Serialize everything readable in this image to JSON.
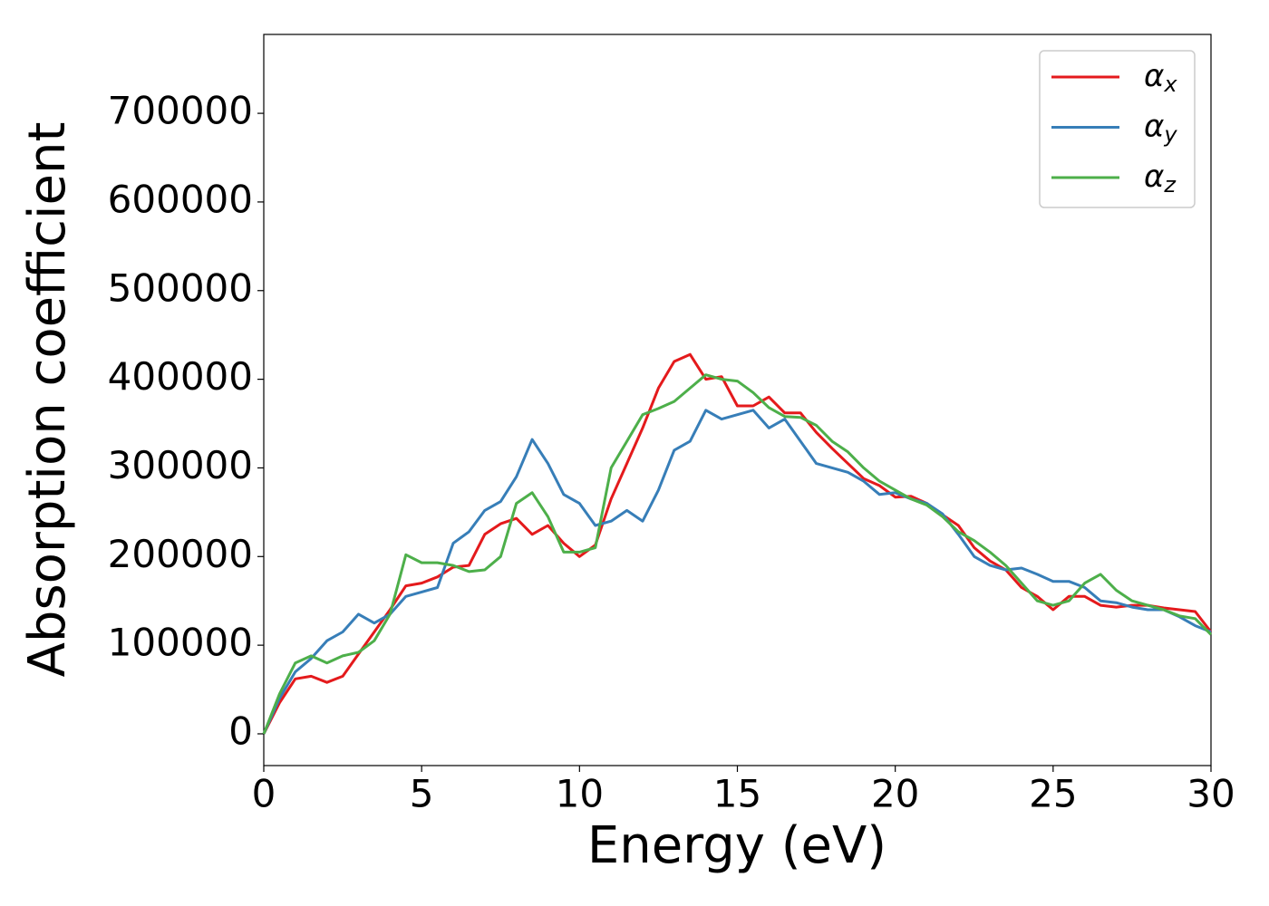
{
  "chart_data": {
    "type": "line",
    "xlabel": "Energy (eV)",
    "ylabel": "Absorption coefficient",
    "x": [
      0,
      0.5,
      1,
      1.5,
      2,
      2.5,
      3,
      3.5,
      4,
      4.5,
      5,
      5.5,
      6,
      6.5,
      7,
      7.5,
      8,
      8.5,
      9,
      9.5,
      10,
      10.5,
      11,
      11.5,
      12,
      12.5,
      13,
      13.5,
      14,
      14.5,
      15,
      15.5,
      16,
      16.5,
      17,
      17.5,
      18,
      18.5,
      19,
      19.5,
      20,
      20.5,
      21,
      21.5,
      22,
      22.5,
      23,
      23.5,
      24,
      24.5,
      25,
      25.5,
      26,
      26.5,
      27,
      27.5,
      28,
      28.5,
      29,
      29.5,
      30
    ],
    "series": [
      {
        "name": "αx",
        "color": "#e41a1c",
        "values": [
          0,
          35000,
          62000,
          65000,
          58000,
          65000,
          90000,
          115000,
          140000,
          167000,
          170000,
          177000,
          188000,
          190000,
          225000,
          237000,
          243000,
          225000,
          235000,
          215000,
          200000,
          213000,
          265000,
          305000,
          345000,
          390000,
          420000,
          428000,
          400000,
          403000,
          370000,
          370000,
          380000,
          362000,
          362000,
          340000,
          322000,
          305000,
          288000,
          280000,
          267000,
          268000,
          260000,
          247000,
          235000,
          210000,
          195000,
          185000,
          165000,
          155000,
          140000,
          155000,
          155000,
          145000,
          143000,
          145000,
          145000,
          142000,
          140000,
          138000,
          115000
        ]
      },
      {
        "name": "αy",
        "color": "#377eb8",
        "values": [
          0,
          40000,
          70000,
          85000,
          105000,
          115000,
          135000,
          125000,
          135000,
          155000,
          160000,
          165000,
          215000,
          228000,
          252000,
          262000,
          290000,
          332000,
          305000,
          270000,
          260000,
          235000,
          240000,
          252000,
          240000,
          275000,
          320000,
          330000,
          365000,
          355000,
          360000,
          365000,
          345000,
          355000,
          330000,
          305000,
          300000,
          295000,
          285000,
          270000,
          272000,
          265000,
          260000,
          248000,
          225000,
          200000,
          190000,
          185000,
          187000,
          180000,
          172000,
          172000,
          165000,
          150000,
          148000,
          143000,
          140000,
          140000,
          132000,
          122000,
          115000
        ]
      },
      {
        "name": "αz",
        "color": "#4daf4a",
        "values": [
          0,
          45000,
          80000,
          88000,
          80000,
          88000,
          92000,
          105000,
          135000,
          202000,
          193000,
          193000,
          190000,
          183000,
          185000,
          200000,
          260000,
          272000,
          245000,
          205000,
          205000,
          210000,
          300000,
          330000,
          360000,
          367000,
          375000,
          390000,
          405000,
          400000,
          398000,
          385000,
          368000,
          358000,
          357000,
          348000,
          330000,
          318000,
          300000,
          285000,
          275000,
          265000,
          258000,
          245000,
          228000,
          218000,
          205000,
          190000,
          170000,
          150000,
          145000,
          150000,
          170000,
          180000,
          162000,
          150000,
          145000,
          140000,
          133000,
          130000,
          112000
        ]
      }
    ],
    "xlim": [
      0,
      30
    ],
    "xticks": [
      0,
      5,
      10,
      15,
      20,
      25,
      30
    ],
    "ylim": [
      -35800,
      789000
    ],
    "yticks": [
      0,
      100000,
      200000,
      300000,
      400000,
      500000,
      600000,
      700000
    ],
    "grid": false,
    "legend": "upper right"
  }
}
